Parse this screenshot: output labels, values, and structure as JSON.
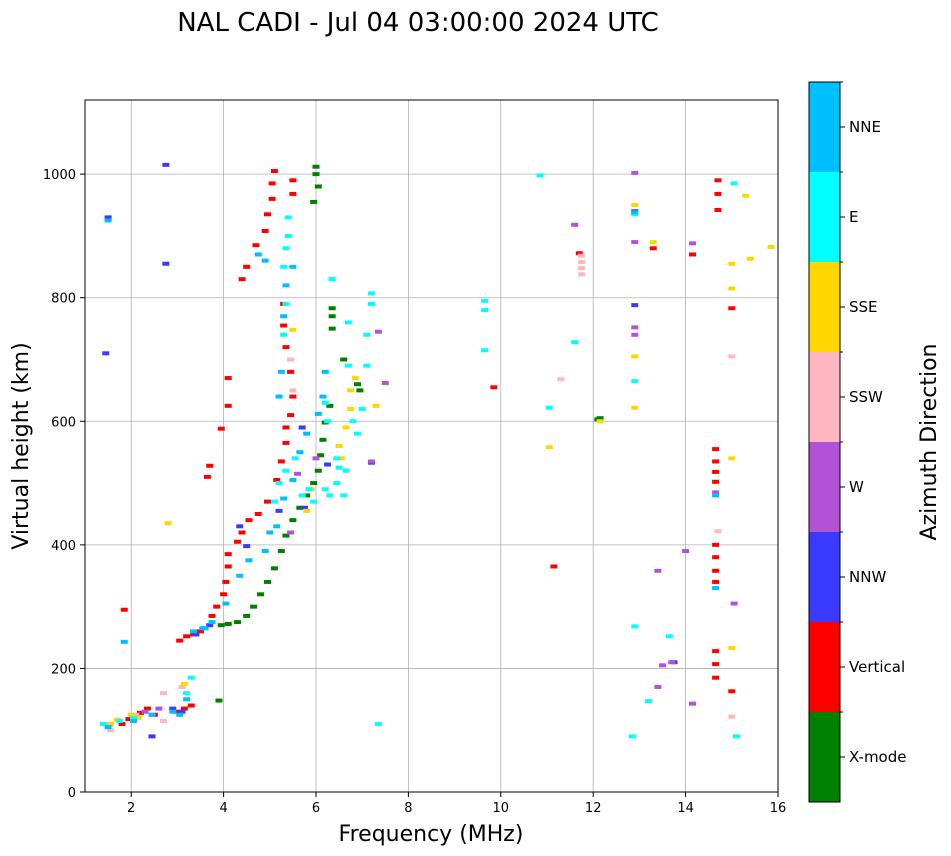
{
  "chart_data": {
    "type": "scatter",
    "title": "NAL CADI - Jul 04 03:00:00 2024 UTC",
    "xlabel": "Frequency (MHz)",
    "ylabel": "Virtual height (km)",
    "xlim": [
      1,
      16
    ],
    "ylim": [
      0,
      1120
    ],
    "x_ticks": [
      2,
      4,
      6,
      8,
      10,
      12,
      14,
      16
    ],
    "y_ticks": [
      0,
      200,
      400,
      600,
      800,
      1000
    ],
    "grid": true,
    "colorbar": {
      "title": "Azimuth Direction",
      "categories": [
        {
          "label": "X-mode",
          "color": "#008000"
        },
        {
          "label": "Vertical",
          "color": "#ff0000"
        },
        {
          "label": "NNW",
          "color": "#3a3aff"
        },
        {
          "label": "W",
          "color": "#b452d6"
        },
        {
          "label": "SSW",
          "color": "#ffb6c1"
        },
        {
          "label": "SSE",
          "color": "#ffd700"
        },
        {
          "label": "E",
          "color": "#00ffff"
        },
        {
          "label": "NNE",
          "color": "#00bfff"
        }
      ]
    },
    "series": [
      {
        "name": "X-mode",
        "points": [
          [
            3.9,
            148
          ],
          [
            3.95,
            270
          ],
          [
            4.1,
            272
          ],
          [
            4.3,
            275
          ],
          [
            4.5,
            285
          ],
          [
            4.65,
            300
          ],
          [
            4.8,
            320
          ],
          [
            4.95,
            340
          ],
          [
            5.1,
            362
          ],
          [
            5.25,
            390
          ],
          [
            5.35,
            415
          ],
          [
            5.5,
            440
          ],
          [
            5.65,
            460
          ],
          [
            5.8,
            480
          ],
          [
            5.95,
            500
          ],
          [
            6.05,
            520
          ],
          [
            6.1,
            545
          ],
          [
            6.15,
            570
          ],
          [
            6.2,
            598
          ],
          [
            6.3,
            625
          ],
          [
            6.9,
            660
          ],
          [
            6.95,
            650
          ],
          [
            6.6,
            700
          ],
          [
            6.35,
            750
          ],
          [
            6.35,
            770
          ],
          [
            6.35,
            783
          ],
          [
            5.95,
            955
          ],
          [
            6.05,
            980
          ],
          [
            6.0,
            1000
          ],
          [
            6.0,
            1012
          ],
          [
            12.1,
            603
          ],
          [
            12.15,
            605
          ]
        ]
      },
      {
        "name": "Vertical",
        "points": [
          [
            1.8,
            110
          ],
          [
            1.95,
            118
          ],
          [
            2.2,
            128
          ],
          [
            2.35,
            135
          ],
          [
            2.5,
            125
          ],
          [
            2.95,
            130
          ],
          [
            3.15,
            135
          ],
          [
            3.3,
            140
          ],
          [
            3.05,
            245
          ],
          [
            3.2,
            252
          ],
          [
            3.35,
            255
          ],
          [
            3.5,
            260
          ],
          [
            3.75,
            285
          ],
          [
            3.85,
            300
          ],
          [
            4.0,
            320
          ],
          [
            4.05,
            340
          ],
          [
            4.1,
            365
          ],
          [
            4.1,
            385
          ],
          [
            4.3,
            405
          ],
          [
            4.4,
            420
          ],
          [
            4.55,
            440
          ],
          [
            4.75,
            450
          ],
          [
            4.95,
            470
          ],
          [
            5.15,
            505
          ],
          [
            5.25,
            535
          ],
          [
            5.35,
            565
          ],
          [
            5.35,
            590
          ],
          [
            5.45,
            610
          ],
          [
            5.5,
            640
          ],
          [
            5.45,
            680
          ],
          [
            5.35,
            720
          ],
          [
            5.3,
            755
          ],
          [
            5.3,
            790
          ],
          [
            3.65,
            510
          ],
          [
            3.7,
            528
          ],
          [
            3.95,
            588
          ],
          [
            4.1,
            625
          ],
          [
            4.1,
            670
          ],
          [
            4.4,
            830
          ],
          [
            4.5,
            850
          ],
          [
            4.7,
            885
          ],
          [
            4.9,
            908
          ],
          [
            4.95,
            935
          ],
          [
            5.05,
            960
          ],
          [
            5.05,
            985
          ],
          [
            5.1,
            1005
          ],
          [
            5.5,
            990
          ],
          [
            5.5,
            968
          ],
          [
            1.85,
            295
          ],
          [
            9.85,
            655
          ],
          [
            11.15,
            365
          ],
          [
            11.7,
            872
          ],
          [
            13.3,
            880
          ],
          [
            14.15,
            870
          ],
          [
            14.65,
            555
          ],
          [
            14.65,
            535
          ],
          [
            14.65,
            518
          ],
          [
            14.65,
            502
          ],
          [
            14.65,
            400
          ],
          [
            14.65,
            380
          ],
          [
            14.65,
            358
          ],
          [
            14.65,
            340
          ],
          [
            14.65,
            228
          ],
          [
            14.65,
            207
          ],
          [
            14.65,
            185
          ],
          [
            14.7,
            990
          ],
          [
            14.7,
            968
          ],
          [
            14.7,
            942
          ],
          [
            15.0,
            783
          ],
          [
            15.0,
            163
          ]
        ]
      },
      {
        "name": "NNW",
        "points": [
          [
            1.5,
            930
          ],
          [
            1.45,
            710
          ],
          [
            2.45,
            90
          ],
          [
            2.9,
            135
          ],
          [
            3.1,
            130
          ],
          [
            3.4,
            255
          ],
          [
            3.7,
            270
          ],
          [
            4.35,
            430
          ],
          [
            4.5,
            398
          ],
          [
            5.2,
            455
          ],
          [
            5.75,
            460
          ],
          [
            5.7,
            590
          ],
          [
            6.25,
            530
          ],
          [
            7.2,
            533
          ],
          [
            2.75,
            1015
          ],
          [
            2.75,
            855
          ],
          [
            12.9,
            788
          ],
          [
            12.9,
            940
          ],
          [
            13.75,
            210
          ]
        ]
      },
      {
        "name": "W",
        "points": [
          [
            2.3,
            130
          ],
          [
            2.6,
            135
          ],
          [
            5.45,
            420
          ],
          [
            5.6,
            515
          ],
          [
            6.0,
            540
          ],
          [
            7.2,
            535
          ],
          [
            11.6,
            918
          ],
          [
            12.9,
            1002
          ],
          [
            12.9,
            890
          ],
          [
            12.9,
            752
          ],
          [
            12.9,
            740
          ],
          [
            13.4,
            170
          ],
          [
            13.4,
            358
          ],
          [
            13.5,
            205
          ],
          [
            13.7,
            210
          ],
          [
            14.0,
            390
          ],
          [
            14.15,
            888
          ],
          [
            14.15,
            143
          ],
          [
            14.65,
            485
          ],
          [
            15.05,
            305
          ],
          [
            7.35,
            745
          ],
          [
            7.5,
            662
          ]
        ]
      },
      {
        "name": "SSW",
        "points": [
          [
            1.55,
            100
          ],
          [
            2.1,
            125
          ],
          [
            2.7,
            115
          ],
          [
            2.7,
            160
          ],
          [
            3.1,
            170
          ],
          [
            5.45,
            700
          ],
          [
            5.5,
            650
          ],
          [
            11.3,
            668
          ],
          [
            11.75,
            838
          ],
          [
            11.75,
            848
          ],
          [
            11.75,
            858
          ],
          [
            11.75,
            868
          ],
          [
            14.7,
            422
          ],
          [
            15.0,
            122
          ],
          [
            15.0,
            705
          ]
        ]
      },
      {
        "name": "SSE",
        "points": [
          [
            1.55,
            110
          ],
          [
            1.7,
            117
          ],
          [
            2.0,
            125
          ],
          [
            2.15,
            120
          ],
          [
            3.15,
            175
          ],
          [
            2.8,
            435
          ],
          [
            5.8,
            455
          ],
          [
            5.9,
            490
          ],
          [
            6.5,
            560
          ],
          [
            6.55,
            540
          ],
          [
            6.65,
            590
          ],
          [
            6.75,
            620
          ],
          [
            6.75,
            650
          ],
          [
            6.85,
            670
          ],
          [
            7.3,
            625
          ],
          [
            11.05,
            558
          ],
          [
            12.15,
            600
          ],
          [
            12.9,
            950
          ],
          [
            12.9,
            705
          ],
          [
            12.9,
            622
          ],
          [
            13.3,
            890
          ],
          [
            15.0,
            855
          ],
          [
            15.0,
            815
          ],
          [
            15.0,
            540
          ],
          [
            15.0,
            233
          ],
          [
            15.3,
            965
          ],
          [
            15.4,
            863
          ],
          [
            15.85,
            882
          ],
          [
            5.5,
            748
          ]
        ]
      },
      {
        "name": "E",
        "points": [
          [
            1.4,
            110
          ],
          [
            1.75,
            115
          ],
          [
            2.05,
            120
          ],
          [
            3.2,
            160
          ],
          [
            3.3,
            185
          ],
          [
            5.1,
            470
          ],
          [
            5.2,
            500
          ],
          [
            5.35,
            520
          ],
          [
            5.55,
            540
          ],
          [
            5.7,
            480
          ],
          [
            5.85,
            490
          ],
          [
            5.95,
            470
          ],
          [
            6.2,
            490
          ],
          [
            6.3,
            480
          ],
          [
            6.45,
            500
          ],
          [
            6.6,
            480
          ],
          [
            6.7,
            690
          ],
          [
            6.7,
            760
          ],
          [
            6.2,
            630
          ],
          [
            6.25,
            600
          ],
          [
            6.45,
            540
          ],
          [
            6.5,
            525
          ],
          [
            6.65,
            520
          ],
          [
            6.8,
            600
          ],
          [
            6.9,
            580
          ],
          [
            7.0,
            620
          ],
          [
            7.2,
            790
          ],
          [
            7.2,
            807
          ],
          [
            7.1,
            740
          ],
          [
            7.1,
            690
          ],
          [
            7.35,
            110
          ],
          [
            9.65,
            780
          ],
          [
            9.65,
            795
          ],
          [
            9.65,
            715
          ],
          [
            10.85,
            998
          ],
          [
            11.05,
            622
          ],
          [
            11.6,
            728
          ],
          [
            12.85,
            90
          ],
          [
            12.9,
            935
          ],
          [
            12.9,
            665
          ],
          [
            12.9,
            268
          ],
          [
            13.2,
            147
          ],
          [
            13.65,
            252
          ],
          [
            15.05,
            985
          ],
          [
            15.1,
            90
          ],
          [
            5.3,
            850
          ],
          [
            5.35,
            880
          ],
          [
            5.4,
            900
          ],
          [
            5.35,
            790
          ],
          [
            5.3,
            740
          ],
          [
            5.4,
            930
          ],
          [
            6.35,
            830
          ],
          [
            6.35,
            830
          ]
        ]
      },
      {
        "name": "NNE",
        "points": [
          [
            1.5,
            925
          ],
          [
            1.5,
            105
          ],
          [
            1.85,
            243
          ],
          [
            2.05,
            115
          ],
          [
            2.45,
            125
          ],
          [
            2.9,
            130
          ],
          [
            3.2,
            150
          ],
          [
            3.35,
            260
          ],
          [
            3.6,
            265
          ],
          [
            3.75,
            275
          ],
          [
            4.05,
            305
          ],
          [
            4.35,
            350
          ],
          [
            4.55,
            375
          ],
          [
            4.9,
            390
          ],
          [
            5.0,
            420
          ],
          [
            5.15,
            430
          ],
          [
            5.3,
            475
          ],
          [
            5.5,
            505
          ],
          [
            5.65,
            550
          ],
          [
            5.8,
            580
          ],
          [
            6.05,
            612
          ],
          [
            6.15,
            640
          ],
          [
            6.2,
            680
          ],
          [
            5.5,
            850
          ],
          [
            5.35,
            820
          ],
          [
            5.3,
            770
          ],
          [
            5.25,
            680
          ],
          [
            5.2,
            640
          ],
          [
            4.9,
            860
          ],
          [
            4.75,
            870
          ],
          [
            3.55,
            265
          ],
          [
            3.05,
            125
          ],
          [
            12.9,
            938
          ],
          [
            14.65,
            330
          ],
          [
            14.65,
            480
          ]
        ]
      }
    ]
  }
}
